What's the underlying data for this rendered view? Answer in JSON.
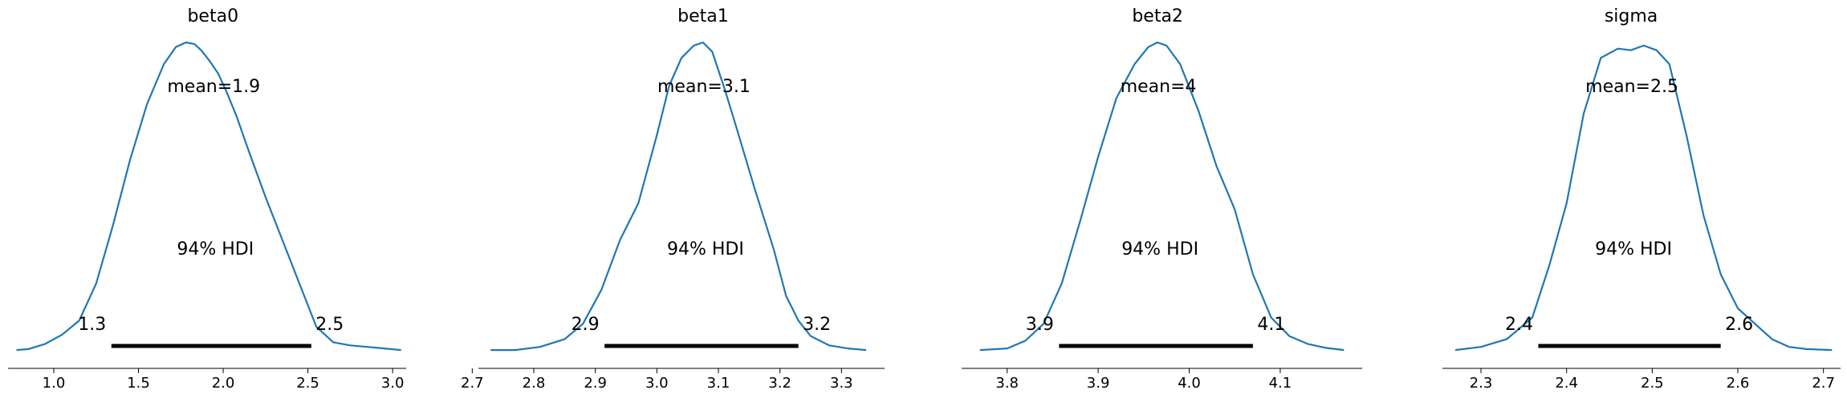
{
  "colors": {
    "kde_line": "#1f77b4",
    "hdi_bar": "#000000",
    "axis": "#000000"
  },
  "chart_data": [
    {
      "type": "line",
      "title": "beta0",
      "mean_text": "mean=1.9",
      "hdi_text": "94% HDI",
      "hdi_low": 1.34,
      "hdi_high": 2.52,
      "hdi_low_label": "1.3",
      "hdi_high_label": "2.5",
      "xlim": [
        0.73,
        3.08
      ],
      "xticks": [
        1.0,
        1.5,
        2.0,
        2.5,
        3.0
      ],
      "xtick_labels": [
        "1.0",
        "1.5",
        "2.0",
        "2.5",
        "3.0"
      ],
      "x": [
        0.78,
        0.85,
        0.95,
        1.05,
        1.15,
        1.25,
        1.35,
        1.45,
        1.55,
        1.65,
        1.72,
        1.78,
        1.83,
        1.87,
        1.92,
        1.97,
        2.02,
        2.08,
        2.15,
        2.25,
        2.35,
        2.45,
        2.55,
        2.65,
        2.75,
        2.85,
        2.95,
        3.05
      ],
      "density": [
        0.005,
        0.008,
        0.025,
        0.055,
        0.1,
        0.22,
        0.41,
        0.62,
        0.8,
        0.93,
        0.985,
        1.0,
        0.995,
        0.975,
        0.94,
        0.9,
        0.84,
        0.76,
        0.65,
        0.5,
        0.36,
        0.22,
        0.08,
        0.03,
        0.02,
        0.015,
        0.01,
        0.005
      ]
    },
    {
      "type": "line",
      "title": "beta1",
      "mean_text": "mean=3.1",
      "hdi_text": "94% HDI",
      "hdi_low": 2.915,
      "hdi_high": 3.23,
      "hdi_low_label": "2.9",
      "hdi_high_label": "3.2",
      "xlim": [
        2.71,
        3.37
      ],
      "xticks": [
        2.7,
        2.8,
        2.9,
        3.0,
        3.1,
        3.2,
        3.3
      ],
      "xtick_labels": [
        "2.7",
        "2.8",
        "2.9",
        "3.0",
        "3.1",
        "3.2",
        "3.3"
      ],
      "x": [
        2.73,
        2.77,
        2.81,
        2.85,
        2.88,
        2.91,
        2.94,
        2.97,
        3.0,
        3.02,
        3.04,
        3.06,
        3.075,
        3.09,
        3.11,
        3.13,
        3.16,
        3.19,
        3.21,
        3.23,
        3.25,
        3.28,
        3.31,
        3.34
      ],
      "density": [
        0.005,
        0.005,
        0.015,
        0.04,
        0.09,
        0.2,
        0.36,
        0.48,
        0.7,
        0.86,
        0.95,
        0.99,
        1.0,
        0.97,
        0.85,
        0.72,
        0.52,
        0.33,
        0.18,
        0.1,
        0.05,
        0.02,
        0.01,
        0.005
      ]
    },
    {
      "type": "line",
      "title": "beta2",
      "mean_text": "mean=4",
      "hdi_text": "94% HDI",
      "hdi_low": 3.857,
      "hdi_high": 4.07,
      "hdi_low_label": "3.9",
      "hdi_high_label": "4.1",
      "xlim": [
        3.75,
        4.19
      ],
      "xticks": [
        3.8,
        3.9,
        4.0,
        4.1
      ],
      "xtick_labels": [
        "3.8",
        "3.9",
        "4.0",
        "4.1"
      ],
      "x": [
        3.77,
        3.8,
        3.82,
        3.84,
        3.86,
        3.88,
        3.9,
        3.92,
        3.94,
        3.955,
        3.965,
        3.975,
        3.99,
        4.01,
        4.03,
        4.05,
        4.07,
        4.09,
        4.11,
        4.13,
        4.15,
        4.17
      ],
      "density": [
        0.005,
        0.01,
        0.035,
        0.09,
        0.22,
        0.42,
        0.63,
        0.82,
        0.93,
        0.985,
        1.0,
        0.99,
        0.93,
        0.78,
        0.6,
        0.46,
        0.25,
        0.11,
        0.05,
        0.025,
        0.012,
        0.005
      ]
    },
    {
      "type": "line",
      "title": "sigma",
      "mean_text": "mean=2.5",
      "hdi_text": "94% HDI",
      "hdi_low": 2.367,
      "hdi_high": 2.58,
      "hdi_low_label": "2.4",
      "hdi_high_label": "2.6",
      "xlim": [
        2.255,
        2.72
      ],
      "xticks": [
        2.3,
        2.4,
        2.5,
        2.6,
        2.7
      ],
      "xtick_labels": [
        "2.3",
        "2.4",
        "2.5",
        "2.6",
        "2.7"
      ],
      "x": [
        2.27,
        2.3,
        2.33,
        2.36,
        2.38,
        2.4,
        2.42,
        2.44,
        2.46,
        2.475,
        2.49,
        2.505,
        2.52,
        2.54,
        2.56,
        2.58,
        2.6,
        2.62,
        2.64,
        2.66,
        2.68,
        2.71
      ],
      "density": [
        0.005,
        0.015,
        0.04,
        0.11,
        0.28,
        0.48,
        0.77,
        0.95,
        0.98,
        0.975,
        0.99,
        0.975,
        0.93,
        0.7,
        0.44,
        0.25,
        0.14,
        0.09,
        0.04,
        0.015,
        0.008,
        0.005
      ]
    }
  ]
}
